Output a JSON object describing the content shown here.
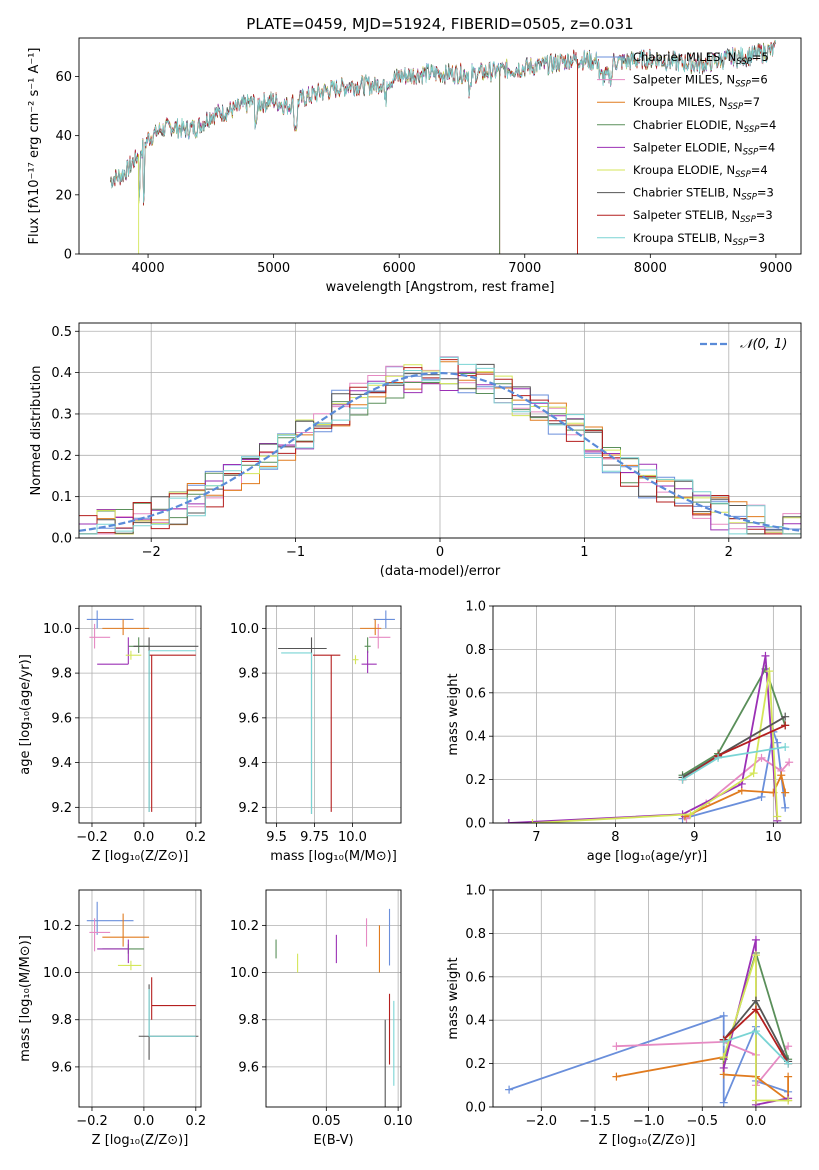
{
  "colors": [
    "#6a8fdb",
    "#e68ac3",
    "#e07b1f",
    "#5a8f5a",
    "#9b30b5",
    "#d4e65a",
    "#555555",
    "#b41f1f",
    "#7ad4d4"
  ],
  "title": "PLATE=0459, MJD=51924, FIBERID=0505, z=0.031",
  "chart_data": [
    {
      "type": "line",
      "xlabel": "wavelength [Angstrom, rest frame]",
      "ylabel": "Flux [fλ10⁻¹⁷ erg cm⁻² s⁻¹ A⁻¹]",
      "xlim": [
        3450,
        9200
      ],
      "ylim": [
        0,
        73
      ],
      "xticks": [
        "4000",
        "5000",
        "6000",
        "7000",
        "8000",
        "9000"
      ],
      "yticks": [
        "0",
        "20",
        "40",
        "60"
      ],
      "legend": "top-right",
      "series": [
        {
          "name": "Chabrier MILES, N_SSP=5"
        },
        {
          "name": "Salpeter MILES, N_SSP=6"
        },
        {
          "name": "Kroupa MILES, N_SSP=7"
        },
        {
          "name": "Chabrier ELODIE, N_SSP=4"
        },
        {
          "name": "Salpeter ELODIE, N_SSP=4"
        },
        {
          "name": "Kroupa ELODIE, N_SSP=4"
        },
        {
          "name": "Chabrier STELIB, N_SSP=3"
        },
        {
          "name": "Salpeter STELIB, N_SSP=3"
        },
        {
          "name": "Kroupa STELIB, N_SSP=3"
        }
      ],
      "continuum": {
        "x": [
          3700,
          3800,
          3900,
          4000,
          4100,
          4200,
          4300,
          4400,
          4500,
          4600,
          4700,
          4800,
          4900,
          5000,
          5100,
          5200,
          5400,
          5600,
          5800,
          6000,
          6200,
          6400,
          6600,
          6800,
          7000,
          7200,
          7400,
          7600,
          7800,
          8000,
          8200,
          8400,
          8600,
          8800,
          9000
        ],
        "y": [
          25,
          27,
          32,
          39,
          42,
          43,
          42,
          43,
          47,
          48,
          49,
          51,
          51,
          52,
          50,
          52,
          55,
          57,
          57,
          60,
          61,
          61,
          61,
          62,
          63,
          64,
          66,
          65,
          65,
          66,
          65,
          64,
          66,
          67,
          69
        ]
      }
    },
    {
      "type": "histogram",
      "xlabel": "(data-model)/error",
      "ylabel": "Normed distribution",
      "xlim": [
        -2.5,
        2.5
      ],
      "ylim": [
        0,
        0.52
      ],
      "xticks": [
        "−2",
        "−1",
        "0",
        "1",
        "2"
      ],
      "yticks": [
        "0.0",
        "0.1",
        "0.2",
        "0.3",
        "0.4",
        "0.5"
      ],
      "legend_label": "𝒩(0, 1)",
      "reference_curve": {
        "type": "normal",
        "mean": 0,
        "std": 1
      },
      "grid": true
    },
    {
      "type": "scatter",
      "panel": "Z-age",
      "xlabel": "Z [log₁₀(Z/Z⊙)]",
      "ylabel": "age  [log₁₀(age/yr)]",
      "xlim": [
        -0.25,
        0.22
      ],
      "ylim": [
        9.13,
        10.1
      ],
      "xticks": [
        "−0.2",
        "0.0",
        "0.2"
      ],
      "yticks": [
        "9.2",
        "9.4",
        "9.6",
        "9.8",
        "10.0"
      ],
      "points": [
        {
          "x": -0.18,
          "y": 10.04,
          "xerr": [
            0.04,
            0.14
          ],
          "yerr": [
            0.04,
            0.04
          ]
        },
        {
          "x": -0.19,
          "y": 9.96,
          "xerr": [
            0.02,
            0.06
          ],
          "yerr": [
            0.06,
            0.05
          ]
        },
        {
          "x": -0.08,
          "y": 10.0,
          "xerr": [
            0.08,
            0.1
          ],
          "yerr": [
            0.04,
            0.03
          ]
        },
        {
          "x": -0.02,
          "y": 9.92,
          "xerr": [
            0.04,
            0.04
          ],
          "yerr": [
            0.04,
            0.03
          ]
        },
        {
          "x": -0.06,
          "y": 9.84,
          "xerr": [
            0.12,
            0.0
          ],
          "yerr": [
            0.12,
            0.0
          ]
        },
        {
          "x": -0.05,
          "y": 9.88,
          "xerr": [
            0.02,
            0.04
          ],
          "yerr": [
            0.02,
            0.02
          ]
        },
        {
          "x": 0.02,
          "y": 9.92,
          "xerr": [
            0.06,
            0.19
          ],
          "yerr": [
            0.04,
            0.74
          ]
        },
        {
          "x": 0.03,
          "y": 9.88,
          "xerr": [
            0.01,
            0.17
          ],
          "yerr": [
            0.0,
            0.7
          ]
        },
        {
          "x": 0.02,
          "y": 9.9,
          "xerr": [
            0.0,
            0.18
          ],
          "yerr": [
            0.0,
            0.72
          ]
        }
      ]
    },
    {
      "type": "scatter",
      "panel": "mass-age",
      "xlabel": "mass [log₁₀(M/M⊙)]",
      "ylabel": "",
      "xlim": [
        9.43,
        10.32
      ],
      "ylim": [
        9.13,
        10.1
      ],
      "xticks": [
        "9.5",
        "9.75",
        "10.0"
      ],
      "yticks": [
        "9.2",
        "9.4",
        "9.6",
        "9.8",
        "10.0"
      ],
      "points": [
        {
          "x": 10.22,
          "y": 10.04,
          "xerr": [
            0.08,
            0.06
          ],
          "yerr": [
            0.04,
            0.04
          ]
        },
        {
          "x": 10.17,
          "y": 9.96,
          "xerr": [
            0.06,
            0.08
          ],
          "yerr": [
            0.06,
            0.05
          ]
        },
        {
          "x": 10.15,
          "y": 10.0,
          "xerr": [
            0.1,
            0.04
          ],
          "yerr": [
            0.04,
            0.03
          ]
        },
        {
          "x": 10.1,
          "y": 9.92,
          "xerr": [
            0.02,
            0.02
          ],
          "yerr": [
            0.04,
            0.03
          ]
        },
        {
          "x": 10.1,
          "y": 9.84,
          "xerr": [
            0.04,
            0.06
          ],
          "yerr": [
            0.06,
            0.04
          ]
        },
        {
          "x": 10.02,
          "y": 9.86,
          "xerr": [
            0.02,
            0.02
          ],
          "yerr": [
            0.02,
            0.02
          ]
        },
        {
          "x": 9.73,
          "y": 9.91,
          "xerr": [
            0.22,
            0.1
          ],
          "yerr": [
            0.05,
            0.74
          ]
        },
        {
          "x": 9.86,
          "y": 9.88,
          "xerr": [
            0.12,
            0.06
          ],
          "yerr": [
            0.0,
            0.7
          ]
        },
        {
          "x": 9.73,
          "y": 9.89,
          "xerr": [
            0.2,
            0.0
          ],
          "yerr": [
            0.0,
            0.72
          ]
        }
      ]
    },
    {
      "type": "line",
      "panel": "age-weight",
      "xlabel": "age  [log₁₀(age/yr)]",
      "ylabel": "mass weight",
      "xlim": [
        6.45,
        10.35
      ],
      "ylim": [
        0,
        1.0
      ],
      "xticks": [
        "7",
        "8",
        "9",
        "10"
      ],
      "yticks": [
        "0.0",
        "0.2",
        "0.4",
        "0.6",
        "0.8",
        "1.0"
      ],
      "series_points": [
        {
          "x": [
            8.85,
            9.85,
            10.0,
            10.05,
            10.15
          ],
          "y": [
            0.02,
            0.12,
            0.42,
            0.37,
            0.07
          ]
        },
        {
          "x": [
            8.9,
            9.15,
            9.85,
            10.1,
            10.2
          ],
          "y": [
            0.02,
            0.09,
            0.3,
            0.24,
            0.28
          ]
        },
        {
          "x": [
            8.88,
            9.6,
            10.0,
            10.1,
            10.15
          ],
          "y": [
            0.03,
            0.15,
            0.14,
            0.22,
            0.14
          ]
        },
        {
          "x": [
            8.85,
            9.3,
            9.9,
            10.15
          ],
          "y": [
            0.22,
            0.32,
            0.71,
            0.45
          ]
        },
        {
          "x": [
            6.65,
            8.85,
            9.6,
            9.9,
            10.05
          ],
          "y": [
            0.0,
            0.04,
            0.18,
            0.77,
            0.01
          ]
        },
        {
          "x": [
            6.95,
            8.95,
            9.75,
            9.95,
            10.05
          ],
          "y": [
            0.0,
            0.04,
            0.23,
            0.7,
            0.03
          ]
        },
        {
          "x": [
            8.85,
            9.3,
            10.15
          ],
          "y": [
            0.21,
            0.31,
            0.49
          ]
        },
        {
          "x": [
            8.85,
            9.3,
            10.15
          ],
          "y": [
            0.2,
            0.31,
            0.45
          ]
        },
        {
          "x": [
            8.85,
            9.3,
            10.15
          ],
          "y": [
            0.2,
            0.3,
            0.35
          ]
        }
      ]
    },
    {
      "type": "scatter",
      "panel": "Z-mass",
      "xlabel": "Z [log₁₀(Z/Z⊙)]",
      "ylabel": "mass [log₁₀(M/M⊙)]",
      "xlim": [
        -0.25,
        0.22
      ],
      "ylim": [
        9.43,
        10.35
      ],
      "xticks": [
        "−0.2",
        "0.0",
        "0.2"
      ],
      "yticks": [
        "9.6",
        "9.8",
        "10.0",
        "10.2"
      ],
      "points": [
        {
          "x": -0.18,
          "y": 10.22,
          "xerr": [
            0.04,
            0.14
          ],
          "yerr": [
            0.08,
            0.06
          ]
        },
        {
          "x": -0.19,
          "y": 10.17,
          "xerr": [
            0.02,
            0.06
          ],
          "yerr": [
            0.06,
            0.08
          ]
        },
        {
          "x": -0.08,
          "y": 10.15,
          "xerr": [
            0.08,
            0.1
          ],
          "yerr": [
            0.1,
            0.04
          ]
        },
        {
          "x": -0.06,
          "y": 10.1,
          "xerr": [
            0.1,
            0.06
          ],
          "yerr": [
            0.02,
            0.02
          ]
        },
        {
          "x": -0.06,
          "y": 10.1,
          "xerr": [
            0.12,
            0.0
          ],
          "yerr": [
            0.04,
            0.06
          ]
        },
        {
          "x": -0.05,
          "y": 10.03,
          "xerr": [
            0.05,
            0.04
          ],
          "yerr": [
            0.02,
            0.02
          ]
        },
        {
          "x": 0.02,
          "y": 9.73,
          "xerr": [
            0.04,
            0.19
          ],
          "yerr": [
            0.22,
            0.1
          ]
        },
        {
          "x": 0.03,
          "y": 9.86,
          "xerr": [
            0.0,
            0.17
          ],
          "yerr": [
            0.12,
            0.06
          ]
        },
        {
          "x": 0.02,
          "y": 9.73,
          "xerr": [
            0.0,
            0.18
          ],
          "yerr": [
            0.2,
            0.0
          ]
        }
      ]
    },
    {
      "type": "scatter",
      "panel": "EBV-mass",
      "xlabel": "E(B-V)",
      "ylabel": "",
      "xlim": [
        0.008,
        0.102
      ],
      "ylim": [
        9.43,
        10.35
      ],
      "xticks": [
        "0.05",
        "0.10"
      ],
      "yticks": [
        "9.6",
        "9.8",
        "10.0",
        "10.2"
      ],
      "points": [
        {
          "x": 0.094,
          "y": 10.15,
          "xerr": [
            0,
            0
          ],
          "yerr": [
            0.12,
            0.12
          ]
        },
        {
          "x": 0.078,
          "y": 10.17,
          "xerr": [
            0,
            0
          ],
          "yerr": [
            0.06,
            0.06
          ]
        },
        {
          "x": 0.087,
          "y": 10.1,
          "xerr": [
            0,
            0
          ],
          "yerr": [
            0.1,
            0.1
          ]
        },
        {
          "x": 0.015,
          "y": 10.1,
          "xerr": [
            0,
            0
          ],
          "yerr": [
            0.04,
            0.04
          ]
        },
        {
          "x": 0.057,
          "y": 10.1,
          "xerr": [
            0,
            0
          ],
          "yerr": [
            0.06,
            0.06
          ]
        },
        {
          "x": 0.03,
          "y": 10.04,
          "xerr": [
            0,
            0
          ],
          "yerr": [
            0.04,
            0.04
          ]
        },
        {
          "x": 0.091,
          "y": 9.6,
          "xerr": [
            0,
            0
          ],
          "yerr": [
            0.2,
            0.2
          ]
        },
        {
          "x": 0.094,
          "y": 9.76,
          "xerr": [
            0,
            0
          ],
          "yerr": [
            0.15,
            0.15
          ]
        },
        {
          "x": 0.097,
          "y": 9.7,
          "xerr": [
            0,
            0
          ],
          "yerr": [
            0.18,
            0.18
          ]
        }
      ]
    },
    {
      "type": "line",
      "panel": "Z-weight",
      "xlabel": "Z [log₁₀(Z/Z⊙)]",
      "ylabel": "mass weight",
      "xlim": [
        -2.45,
        0.42
      ],
      "ylim": [
        0,
        1.0
      ],
      "xticks": [
        "−2.0",
        "−1.5",
        "−1.0",
        "−0.5",
        "0.0"
      ],
      "yticks": [
        "0.0",
        "0.2",
        "0.4",
        "0.6",
        "0.8",
        "1.0"
      ],
      "series_points": [
        {
          "x": [
            -2.3,
            -0.3,
            -0.3,
            0.0,
            0.0,
            0.3
          ],
          "y": [
            0.08,
            0.42,
            0.02,
            0.37,
            0.12,
            0.07
          ]
        },
        {
          "x": [
            -1.3,
            -0.3,
            0.0,
            0.0,
            0.3
          ],
          "y": [
            0.28,
            0.3,
            0.24,
            0.1,
            0.28
          ]
        },
        {
          "x": [
            -1.3,
            -0.3,
            -0.3,
            0.0,
            0.3,
            0.3
          ],
          "y": [
            0.14,
            0.23,
            0.15,
            0.14,
            0.03,
            0.14
          ]
        },
        {
          "x": [
            -0.3,
            0.0,
            0.3
          ],
          "y": [
            0.22,
            0.71,
            0.22
          ]
        },
        {
          "x": [
            -0.3,
            0.0,
            0.0,
            0.3
          ],
          "y": [
            0.18,
            0.77,
            0.01,
            0.04
          ]
        },
        {
          "x": [
            -0.3,
            0.0,
            0.0,
            0.3
          ],
          "y": [
            0.23,
            0.7,
            0.03,
            0.03
          ]
        },
        {
          "x": [
            -0.3,
            0.0,
            0.3
          ],
          "y": [
            0.31,
            0.49,
            0.21
          ]
        },
        {
          "x": [
            -0.3,
            0.0,
            0.3
          ],
          "y": [
            0.31,
            0.45,
            0.2
          ]
        },
        {
          "x": [
            -0.3,
            0.0,
            0.3
          ],
          "y": [
            0.3,
            0.35,
            0.2
          ]
        }
      ]
    }
  ]
}
